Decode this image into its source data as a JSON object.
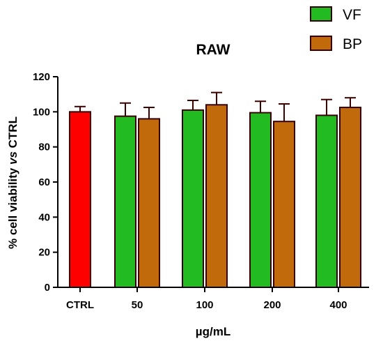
{
  "chart_data": {
    "type": "bar",
    "title": "RAW",
    "ylabel_parts": [
      "% cell viability ",
      "vs",
      " CTRL"
    ],
    "xlabel": "µg/mL",
    "ylim": [
      0,
      120
    ],
    "yticks": [
      0,
      20,
      40,
      60,
      80,
      100,
      120
    ],
    "categories": [
      "CTRL",
      "50",
      "100",
      "200",
      "400"
    ],
    "series": [
      {
        "name": "CTRL",
        "color": "#ff0000",
        "values": [
          100,
          null,
          null,
          null,
          null
        ],
        "errors": [
          3,
          null,
          null,
          null,
          null
        ],
        "legend": false
      },
      {
        "name": "VF",
        "color": "#22bb22",
        "values": [
          null,
          97.5,
          101,
          99.5,
          98
        ],
        "errors": [
          null,
          7.5,
          5.5,
          6.5,
          9
        ],
        "legend": true
      },
      {
        "name": "BP",
        "color": "#c06a0c",
        "values": [
          null,
          96,
          104,
          94.5,
          102.5
        ],
        "errors": [
          null,
          6.5,
          7,
          10,
          5.5
        ],
        "legend": true
      }
    ],
    "grid": false,
    "legend_position": "top-right",
    "edge_color": "#3a0000"
  }
}
